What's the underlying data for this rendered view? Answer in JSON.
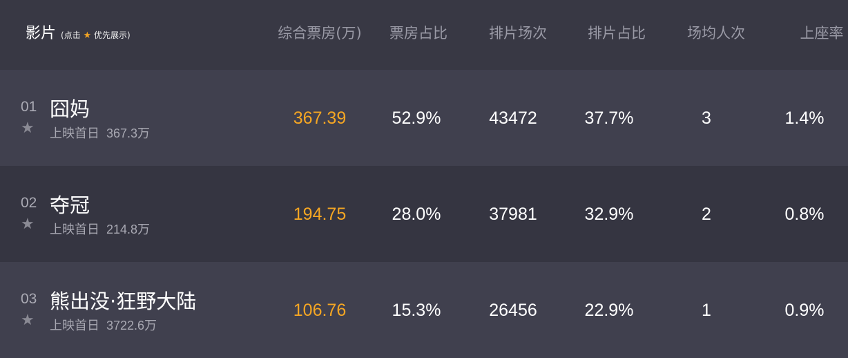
{
  "header": {
    "title": "影片",
    "note_prefix": "(点击",
    "note_suffix": "优先展示)",
    "columns": [
      "综合票房(万)",
      "票房占比",
      "排片场次",
      "排片占比",
      "场均人次",
      "上座率"
    ]
  },
  "colors": {
    "accent": "#f5a623",
    "header_bg": "#383844",
    "row_odd": "#40404e",
    "row_even": "#353541"
  },
  "rows": [
    {
      "rank": "01",
      "name": "囧妈",
      "sub_label": "上映首日",
      "sub_value": "367.3万",
      "values": [
        "367.39",
        "52.9%",
        "43472",
        "37.7%",
        "3",
        "1.4%"
      ]
    },
    {
      "rank": "02",
      "name": "夺冠",
      "sub_label": "上映首日",
      "sub_value": "214.8万",
      "values": [
        "194.75",
        "28.0%",
        "37981",
        "32.9%",
        "2",
        "0.8%"
      ]
    },
    {
      "rank": "03",
      "name": "熊出没·狂野大陆",
      "sub_label": "上映首日",
      "sub_value": "3722.6万",
      "values": [
        "106.76",
        "15.3%",
        "26456",
        "22.9%",
        "1",
        "0.9%"
      ]
    }
  ]
}
